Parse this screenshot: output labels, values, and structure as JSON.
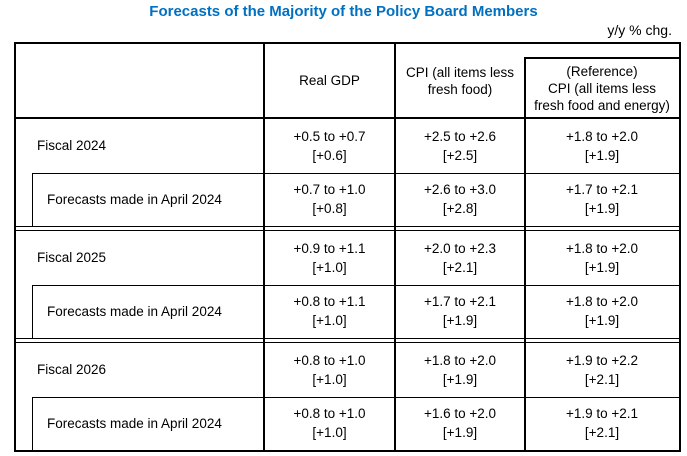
{
  "page": {
    "title": "Forecasts of the Majority of the Policy Board Members",
    "unit_note": "y/y % chg."
  },
  "colors": {
    "title_blue": "#0070C0",
    "border_black": "#000000",
    "background": "#FFFFFF"
  },
  "table": {
    "header": {
      "col_row_label": "",
      "col_real_gdp": "Real GDP",
      "col_cpi_lines": [
        "CPI (all items less",
        "fresh food)"
      ],
      "col_reference_lines": [
        "(Reference)",
        "CPI (all items less",
        "fresh food and energy)"
      ]
    },
    "groups": [
      {
        "rows": [
          {
            "label": "Fiscal 2024",
            "cells": [
              {
                "range": "+0.5 to +0.7",
                "point": "[+0.6]"
              },
              {
                "range": "+2.5 to +2.6",
                "point": "[+2.5]"
              },
              {
                "range": "+1.8 to +2.0",
                "point": "[+1.9]"
              }
            ]
          },
          {
            "label": "Forecasts made in April 2024",
            "cells": [
              {
                "range": "+0.7 to +1.0",
                "point": "[+0.8]"
              },
              {
                "range": "+2.6 to +3.0",
                "point": "[+2.8]"
              },
              {
                "range": "+1.7 to +2.1",
                "point": "[+1.9]"
              }
            ]
          }
        ]
      },
      {
        "rows": [
          {
            "label": "Fiscal 2025",
            "cells": [
              {
                "range": "+0.9 to +1.1",
                "point": "[+1.0]"
              },
              {
                "range": "+2.0 to +2.3",
                "point": "[+2.1]"
              },
              {
                "range": "+1.8 to +2.0",
                "point": "[+1.9]"
              }
            ]
          },
          {
            "label": "Forecasts made in April 2024",
            "cells": [
              {
                "range": "+0.8 to +1.1",
                "point": "[+1.0]"
              },
              {
                "range": "+1.7 to +2.1",
                "point": "[+1.9]"
              },
              {
                "range": "+1.8 to +2.0",
                "point": "[+1.9]"
              }
            ]
          }
        ]
      },
      {
        "rows": [
          {
            "label": "Fiscal 2026",
            "cells": [
              {
                "range": "+0.8 to +1.0",
                "point": "[+1.0]"
              },
              {
                "range": "+1.8 to +2.0",
                "point": "[+1.9]"
              },
              {
                "range": "+1.9 to +2.2",
                "point": "[+2.1]"
              }
            ]
          },
          {
            "label": "Forecasts made in April 2024",
            "cells": [
              {
                "range": "+0.8 to +1.0",
                "point": "[+1.0]"
              },
              {
                "range": "+1.6 to +2.0",
                "point": "[+1.9]"
              },
              {
                "range": "+1.9 to +2.1",
                "point": "[+2.1]"
              }
            ]
          }
        ]
      }
    ]
  }
}
